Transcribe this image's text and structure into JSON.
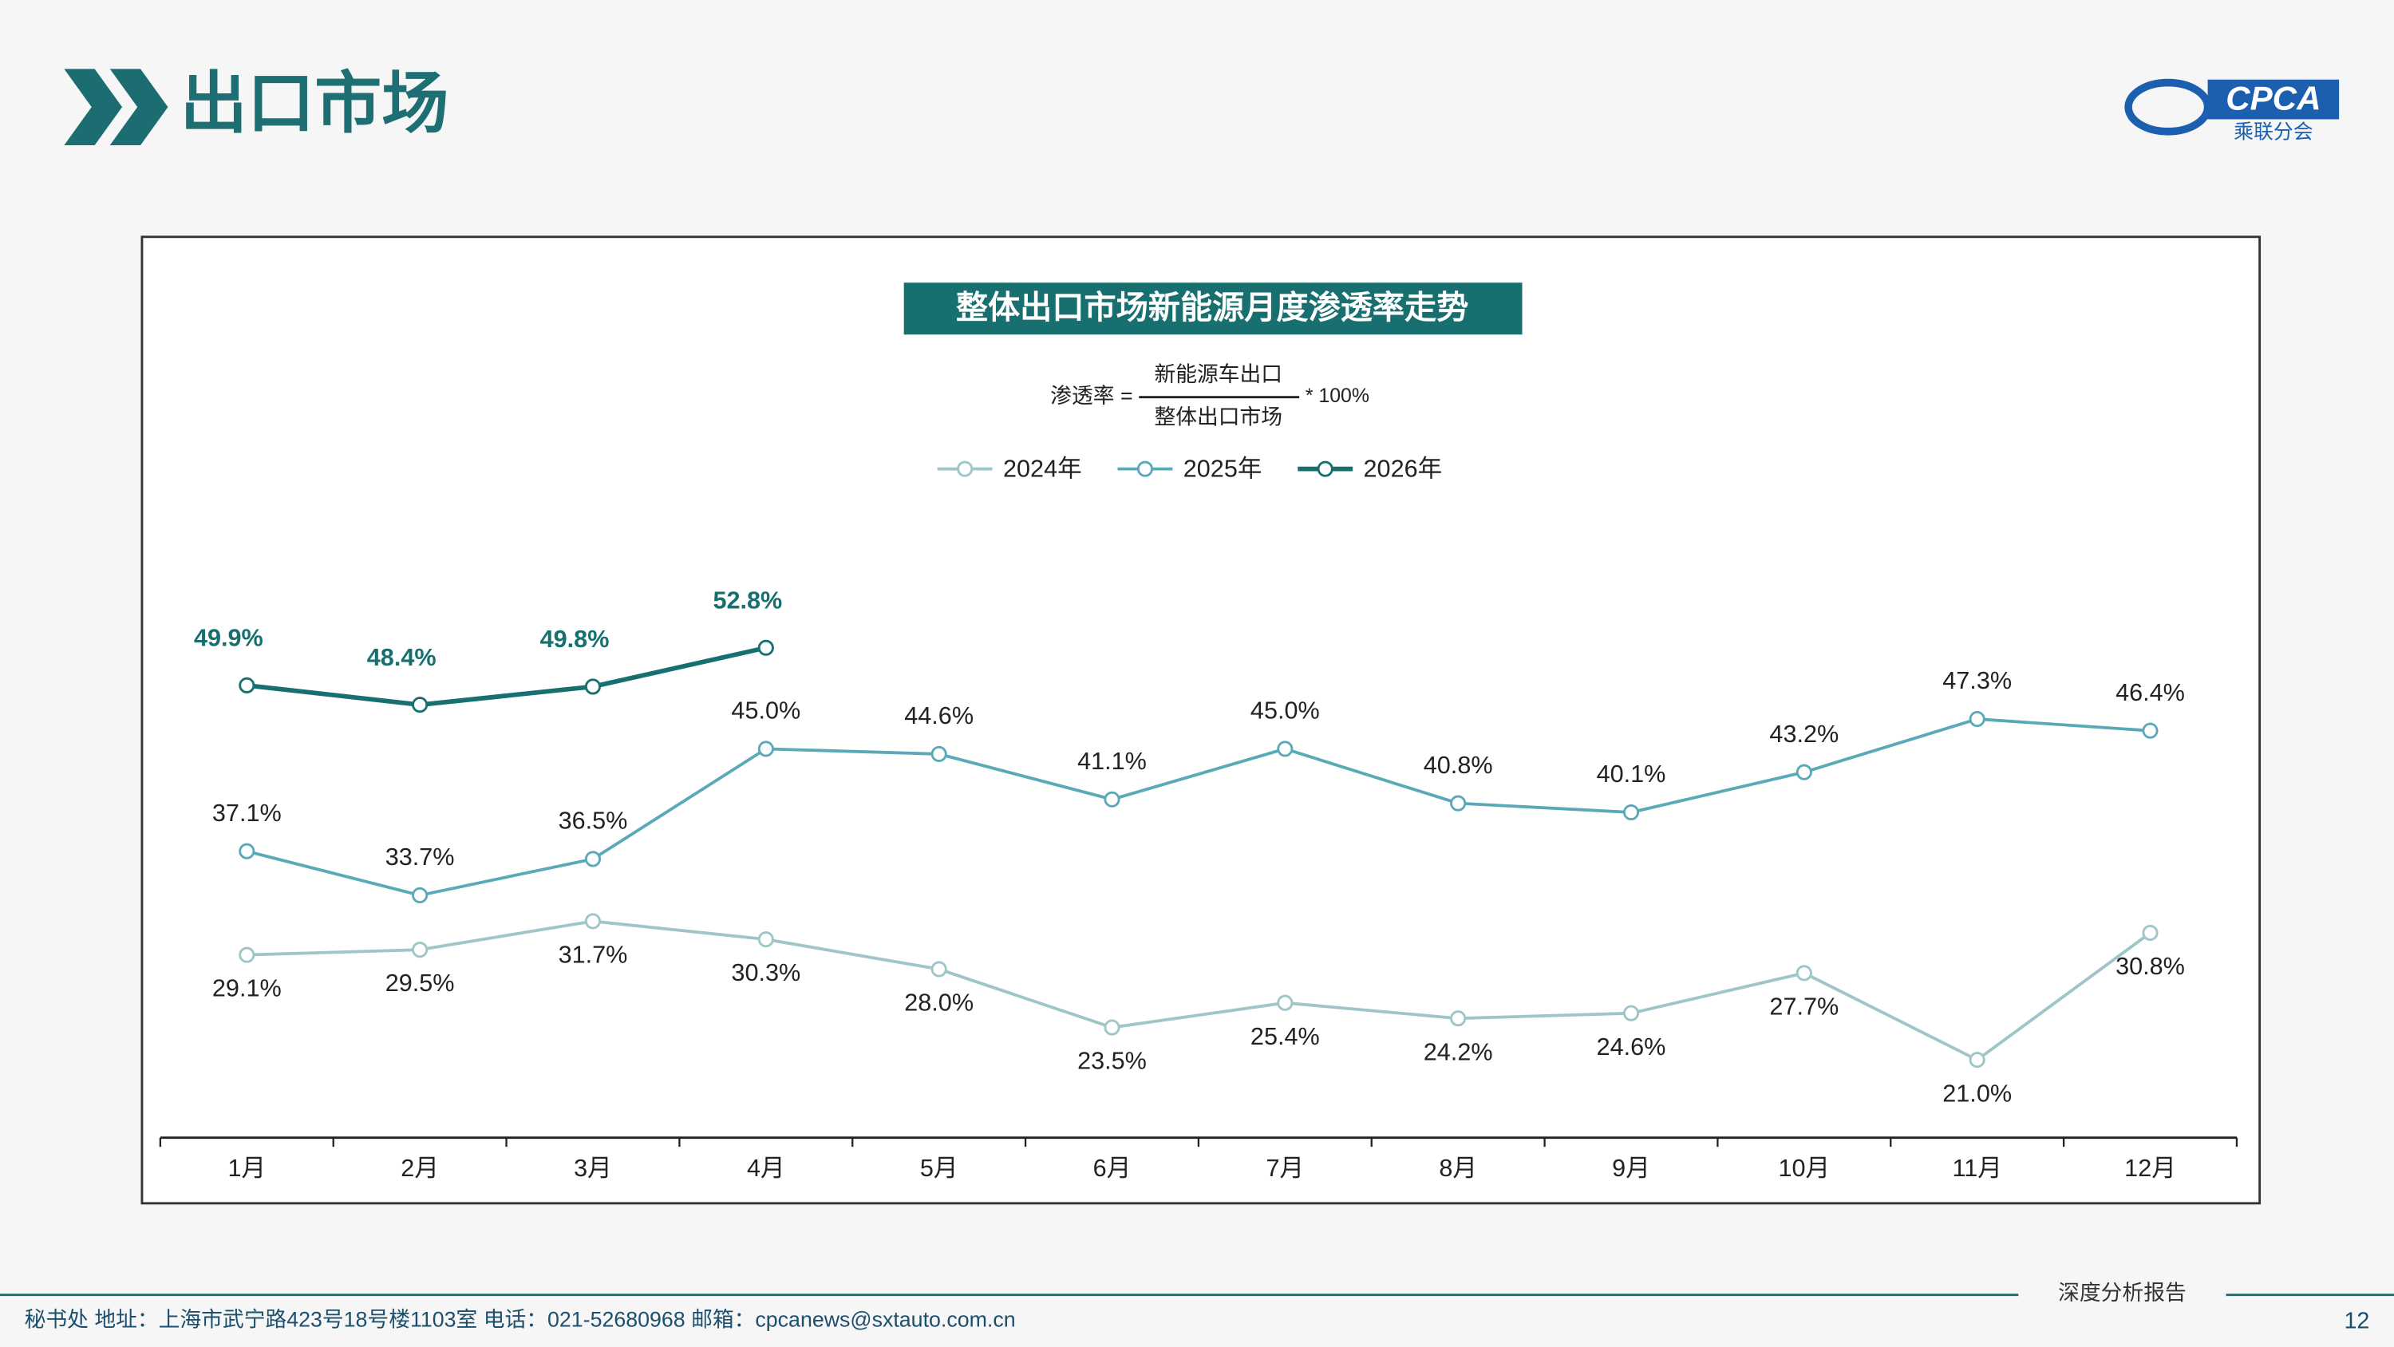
{
  "header": {
    "title": "出口市场",
    "logo_text": "CPCA",
    "logo_subtext": "乘联分会"
  },
  "chart_data": {
    "type": "line",
    "title": "整体出口市场新能源月度渗透率走势",
    "formula": {
      "left": "渗透率 =",
      "numerator": "新能源车出口",
      "denominator": "整体出口市场",
      "factor": "* 100%"
    },
    "categories": [
      "1月",
      "2月",
      "3月",
      "4月",
      "5月",
      "6月",
      "7月",
      "8月",
      "9月",
      "10月",
      "11月",
      "12月"
    ],
    "series": [
      {
        "name": "2024年",
        "color": "#9ec5c7",
        "values": [
          29.1,
          29.5,
          31.7,
          30.3,
          28.0,
          23.5,
          25.4,
          24.2,
          24.6,
          27.7,
          21.0,
          30.8
        ],
        "value_labels": [
          "29.1%",
          "29.5%",
          "31.7%",
          "30.3%",
          "28.0%",
          "23.5%",
          "25.4%",
          "24.2%",
          "24.6%",
          "27.7%",
          "21.0%",
          "30.8%"
        ]
      },
      {
        "name": "2025年",
        "color": "#5aa9b9",
        "values": [
          37.1,
          33.7,
          36.5,
          45.0,
          44.6,
          41.1,
          45.0,
          40.8,
          40.1,
          43.2,
          47.3,
          46.4
        ],
        "value_labels": [
          "37.1%",
          "33.7%",
          "36.5%",
          "45.0%",
          "44.6%",
          "41.1%",
          "45.0%",
          "40.8%",
          "40.1%",
          "43.2%",
          "47.3%",
          "46.4%"
        ]
      },
      {
        "name": "2026年",
        "color": "#17706f",
        "values": [
          49.9,
          48.4,
          49.8,
          52.8,
          null,
          null,
          null,
          null,
          null,
          null,
          null,
          null
        ],
        "value_labels": [
          "49.9%",
          "48.4%",
          "49.8%",
          "52.8%",
          null,
          null,
          null,
          null,
          null,
          null,
          null,
          null
        ]
      }
    ],
    "ylim": [
      15,
      58
    ],
    "legend": "top"
  },
  "footer": {
    "address": "秘书处   地址：上海市武宁路423号18号楼1103室  电话：021-52680968   邮箱：cpcanews@sxtauto.com.cn",
    "report": "深度分析报告",
    "page": "12"
  }
}
